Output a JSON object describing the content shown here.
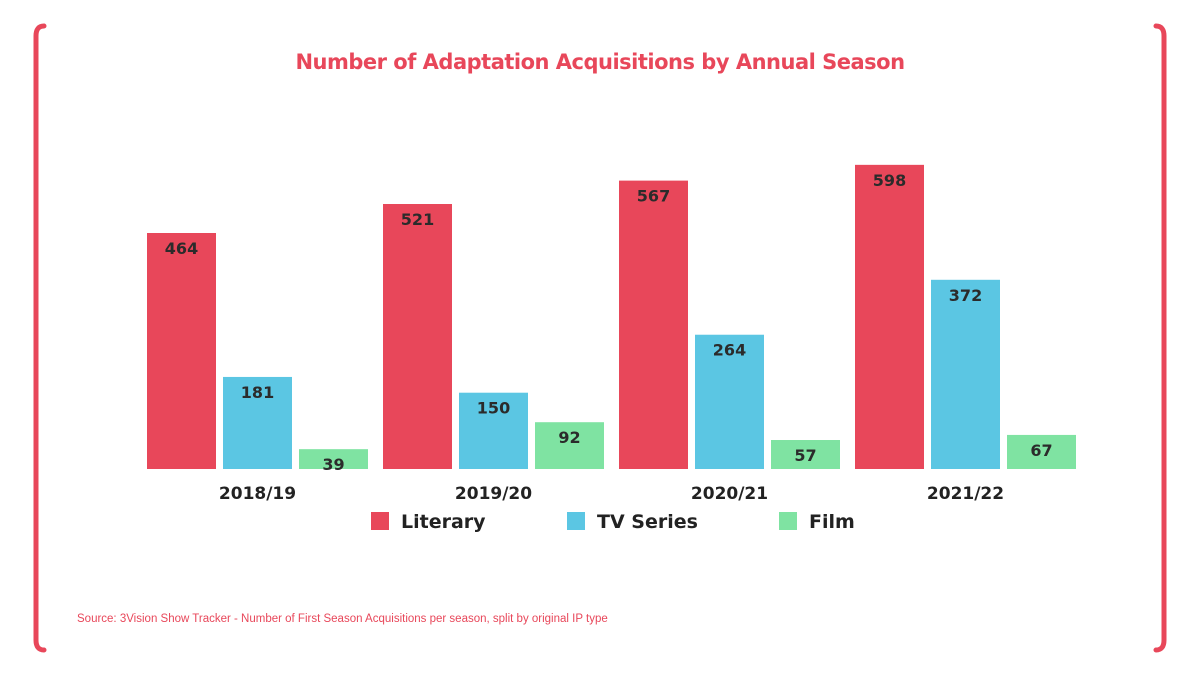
{
  "chart_data": {
    "type": "bar",
    "title": "Number of Adaptation Acquisitions by Annual Season",
    "categories": [
      "2018/19",
      "2019/20",
      "2020/21",
      "2021/22"
    ],
    "series": [
      {
        "name": "Literary",
        "color": "#e8475a",
        "values": [
          464,
          521,
          567,
          598
        ]
      },
      {
        "name": "TV Series",
        "color": "#5bc6e3",
        "values": [
          181,
          150,
          264,
          372
        ]
      },
      {
        "name": "Film",
        "color": "#7fe3a2",
        "values": [
          39,
          92,
          57,
          67
        ]
      }
    ],
    "ylim": [
      0,
      600
    ],
    "grid": false,
    "legend": "bottom",
    "data_labels": true,
    "source": "Source: 3Vision Show Tracker - Number of First Season Acquisitions per season, split by original IP type",
    "frame_color": "#e8475a"
  }
}
